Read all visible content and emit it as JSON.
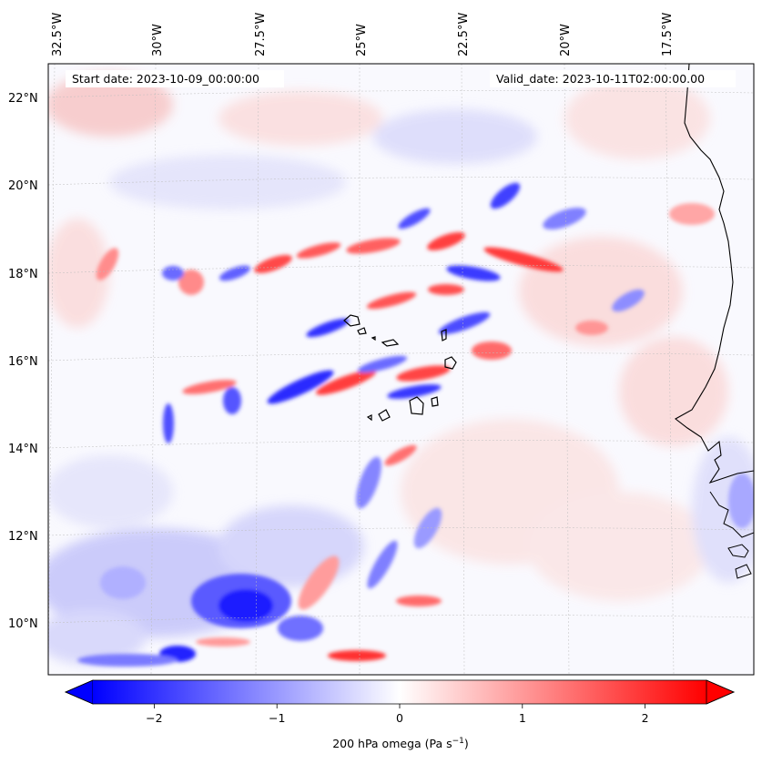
{
  "map": {
    "start_date": "Start date: 2023-10-09_00:00:00",
    "valid_date": "Valid_date: 2023-10-11T02:00:00.00",
    "top_longitude_labels": [
      "32.5°W",
      "30°W",
      "27.5°W",
      "25°W",
      "22.5°W",
      "20°W",
      "17.5°W"
    ],
    "left_latitude_labels": [
      "22°N",
      "20°N",
      "18°N",
      "16°N",
      "14°N",
      "12°N",
      "10°N"
    ],
    "field": "200 hPa omega",
    "colors": {
      "negative": "#0000ff",
      "zero": "#ffffff",
      "positive": "#ff0000",
      "coast": "#000000"
    }
  },
  "colorbar": {
    "label_main": "200 hPa omega (Pa s",
    "label_exp": "−1",
    "label_close": ")",
    "range": [
      -2.5,
      2.5
    ],
    "ticks": [
      "−2",
      "−1",
      "0",
      "1",
      "2"
    ],
    "tick_values": [
      -2,
      -1,
      0,
      1,
      2
    ]
  }
}
